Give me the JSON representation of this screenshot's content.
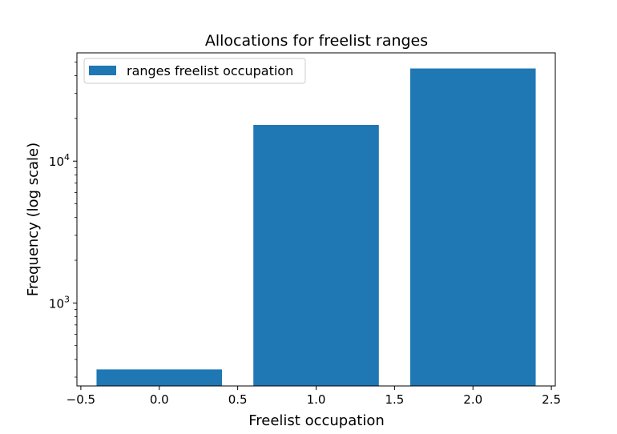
{
  "chart_data": {
    "type": "bar",
    "title": "Allocations for freelist ranges",
    "xlabel": "Freelist occupation",
    "ylabel": "Frequency (log scale)",
    "yscale": "log",
    "x": [
      0,
      1,
      2
    ],
    "bar_width": 0.8,
    "series": [
      {
        "name": "ranges freelist occupation",
        "color": "#1f77b4",
        "values": [
          340,
          18000,
          45000
        ]
      }
    ],
    "xlim": [
      -0.525,
      2.525
    ],
    "ylim": [
      260,
      58000
    ],
    "xticks": [
      -0.5,
      0.0,
      0.5,
      1.0,
      1.5,
      2.0,
      2.5
    ],
    "xtick_labels": [
      "−0.5",
      "0.0",
      "0.5",
      "1.0",
      "1.5",
      "2.0",
      "2.5"
    ],
    "yticks_major": [
      1000,
      10000
    ],
    "ytick_labels": [
      {
        "base": "10",
        "exp": "3"
      },
      {
        "base": "10",
        "exp": "4"
      }
    ],
    "yticks_minor": [
      300,
      400,
      500,
      600,
      700,
      800,
      900,
      2000,
      3000,
      4000,
      5000,
      6000,
      7000,
      8000,
      9000,
      20000,
      30000,
      40000,
      50000
    ],
    "grid": false,
    "legend_position": "top-left"
  }
}
